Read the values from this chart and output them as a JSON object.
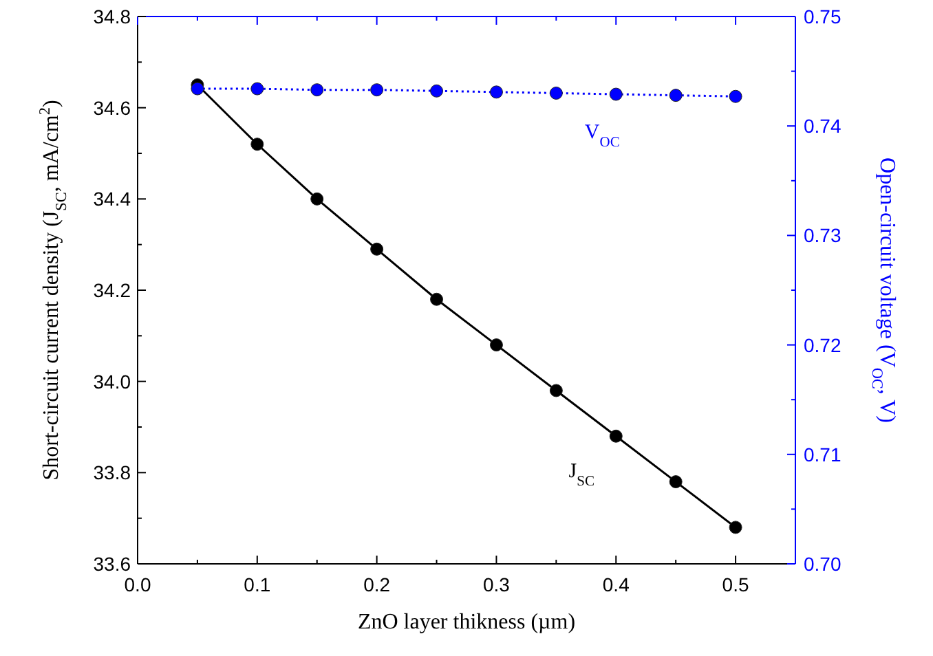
{
  "chart_data": {
    "type": "line",
    "xlabel": "ZnO layer thikness (µm)",
    "ylabel": "Short-circuit current density (J$_{SC}$, mA/cm$^{2}$)",
    "y2label": "Open-circuit voltage (V$_{OC}$, V)",
    "x": [
      0.05,
      0.1,
      0.15,
      0.2,
      0.25,
      0.3,
      0.35,
      0.4,
      0.45,
      0.5
    ],
    "series": [
      {
        "color": "#000000",
        "line_style": "solid",
        "values": [
          34.65,
          34.52,
          34.4,
          34.29,
          34.18,
          34.08,
          33.98,
          33.88,
          33.78,
          33.68
        ]
      },
      {
        "color": "#0000ff",
        "axis": "y2",
        "line_style": "dotted",
        "values": [
          0.7434,
          0.7434,
          0.7433,
          0.7433,
          0.7432,
          0.7431,
          0.743,
          0.7429,
          0.7428,
          0.7427
        ]
      }
    ],
    "xlim": [
      0,
      0.55
    ],
    "xticks": [
      {
        "value": 0,
        "label": "0.0"
      },
      0.1,
      0.2,
      0.3,
      0.4,
      0.5
    ],
    "ylim": [
      33.6,
      34.8
    ],
    "yticks": [
      {
        "value": 33.6,
        "label": "33.6"
      },
      {
        "value": 33.8,
        "label": "33.8"
      },
      {
        "value": 34,
        "label": "34.0"
      },
      {
        "value": 34.2,
        "label": "34.2"
      },
      {
        "value": 34.4,
        "label": "34.4"
      },
      {
        "value": 34.6,
        "label": "34.6"
      },
      {
        "value": 34.8,
        "label": "34.8"
      }
    ],
    "y2lim": [
      0.7,
      0.75
    ],
    "y2ticks": [
      {
        "value": 0.7,
        "label": "0.70"
      },
      0.71,
      0.72,
      0.73,
      0.74,
      {
        "value": 0.75,
        "label": "0.75"
      }
    ],
    "marker": "circle",
    "grid": false,
    "annotations": [
      "J$_{SC}$",
      "V$_{OC}$"
    ]
  }
}
